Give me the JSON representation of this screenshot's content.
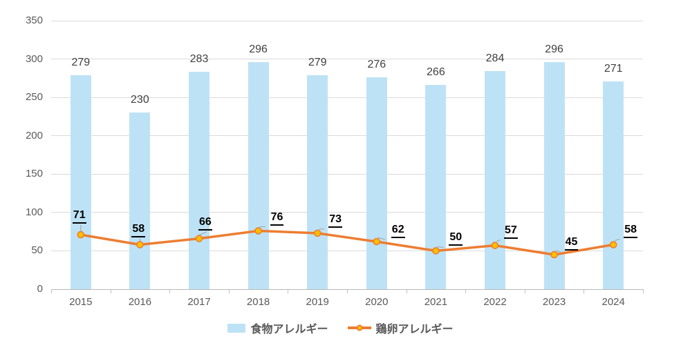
{
  "chart_data": {
    "type": "bar",
    "subtype": "combo-bar-line",
    "title": "",
    "xlabel": "",
    "ylabel": "",
    "categories": [
      "2015",
      "2016",
      "2017",
      "2018",
      "2019",
      "2020",
      "2021",
      "2022",
      "2023",
      "2024"
    ],
    "series": [
      {
        "name": "食物アレルギー",
        "chart_type": "bar",
        "color": "#bee2f5",
        "values": [
          279,
          230,
          283,
          296,
          279,
          276,
          266,
          284,
          296,
          271
        ]
      },
      {
        "name": "鶏卵アレルギー",
        "chart_type": "line",
        "color": "#ed7d31",
        "marker_color": "#ffc000",
        "values": [
          71,
          58,
          66,
          76,
          73,
          62,
          50,
          57,
          45,
          58
        ]
      }
    ],
    "ylim": [
      0,
      350
    ],
    "yticks": [
      0,
      50,
      100,
      150,
      200,
      250,
      300,
      350
    ],
    "grid": "horizontal",
    "legend_position": "bottom",
    "data_labels": true
  },
  "legend": {
    "items": [
      {
        "label": "食物アレルギー"
      },
      {
        "label": "鶏卵アレルギー"
      }
    ]
  },
  "colors": {
    "bar_fill": "#bee2f5",
    "line_stroke": "#ed7d31",
    "marker_fill": "#ffc000",
    "gridline": "#dadada",
    "axis_line": "#b8b8b8",
    "axis_label_text": "#595959",
    "bar_label_text": "#3f3f3f",
    "line_label_text": "#000000",
    "legend_text": "#595959",
    "background": "#ffffff"
  }
}
